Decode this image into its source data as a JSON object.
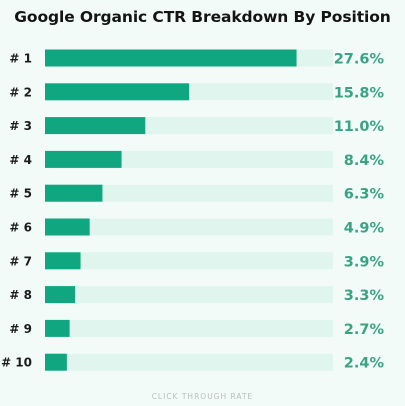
{
  "chart_data": {
    "type": "bar",
    "orientation": "horizontal",
    "title": "Google Organic CTR Breakdown By Position",
    "xlabel": "CLICK THROUGH RATE",
    "ylabel": "",
    "categories": [
      "# 1",
      "# 2",
      "# 3",
      "# 4",
      "# 5",
      "# 6",
      "# 7",
      "# 8",
      "# 9",
      "# 10"
    ],
    "values": [
      27.6,
      15.8,
      11.0,
      8.4,
      6.3,
      4.9,
      3.9,
      3.3,
      2.7,
      2.4
    ],
    "value_labels": [
      "27.6%",
      "15.8%",
      "11.0%",
      "8.4%",
      "6.3%",
      "4.9%",
      "3.9%",
      "3.3%",
      "2.7%",
      "2.4%"
    ],
    "xlim": [
      0,
      31.6
    ],
    "grid": false,
    "colors": {
      "bar": "#10a67f",
      "track": "#dff5ee",
      "value_text": "#3aa384"
    }
  }
}
